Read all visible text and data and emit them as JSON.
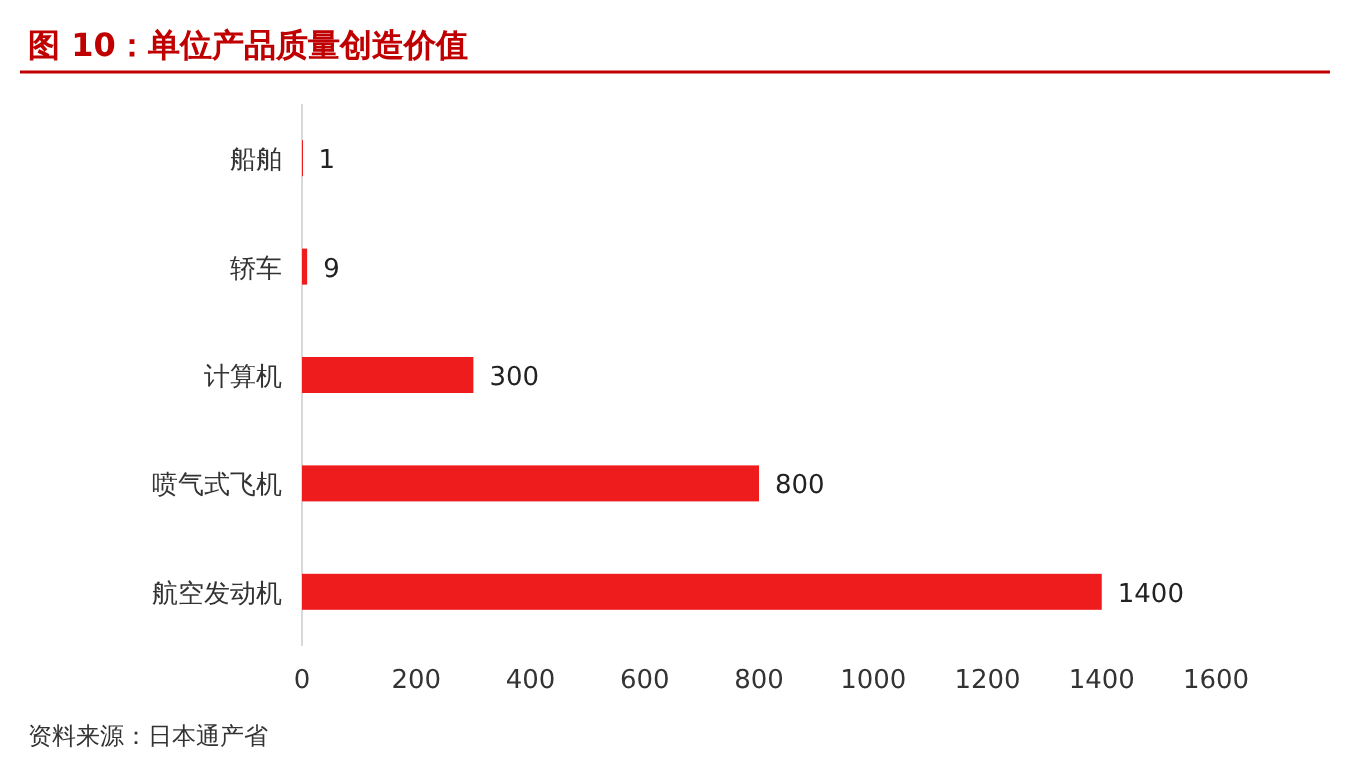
{
  "chart_data": {
    "type": "bar",
    "orientation": "horizontal",
    "title": "图 10：单位产品质量创造价值",
    "categories": [
      "船舶",
      "轿车",
      "计算机",
      "喷气式飞机",
      "航空发动机"
    ],
    "values": [
      1,
      9,
      300,
      800,
      1400
    ],
    "color": "#ee1c1c",
    "xlim": [
      0,
      1600
    ],
    "xticks": [
      0,
      200,
      400,
      600,
      800,
      1000,
      1200,
      1400,
      1600
    ],
    "data_labels": true,
    "grid": false,
    "annotations": [
      "资料来源：日本通产省"
    ]
  }
}
